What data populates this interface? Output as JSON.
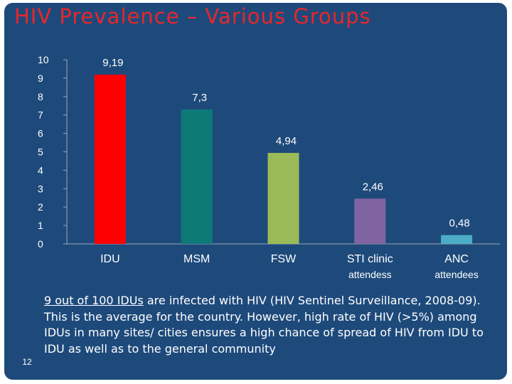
{
  "slide": {
    "title": "HIV Prevalence – Various Groups",
    "page_number": "12",
    "body_underlined": "9 out of 100 IDUs",
    "body_rest": " are infected with HIV (HIV Sentinel Surveillance, 2008-09). This is the average for the country. However, high rate of HIV (>5%) among IDUs in many sites/ cities ensures a high chance of spread of HIV from IDU to IDU as well as to the general community"
  },
  "colors": {
    "background": "#1e4a7b",
    "title": "#e8262b",
    "text": "#ffffff"
  },
  "chart_data": {
    "type": "bar",
    "title": "",
    "xlabel": "",
    "ylabel": "",
    "ylim": [
      0,
      10
    ],
    "yticks": [
      0,
      1,
      2,
      3,
      4,
      5,
      6,
      7,
      8,
      9,
      10
    ],
    "grid": false,
    "legend": "none",
    "categories": [
      [
        "IDU"
      ],
      [
        "MSM"
      ],
      [
        "FSW"
      ],
      [
        "STI clinic",
        "attendess"
      ],
      [
        "ANC",
        "attendees"
      ]
    ],
    "values": [
      9.19,
      7.3,
      4.94,
      2.46,
      0.48
    ],
    "data_labels": [
      "9,19",
      "7,3",
      "4,94",
      "2,46",
      "0,48"
    ],
    "bar_colors": [
      "#ff0000",
      "#0e7a78",
      "#9bbb59",
      "#8064a2",
      "#4bacc6"
    ]
  }
}
